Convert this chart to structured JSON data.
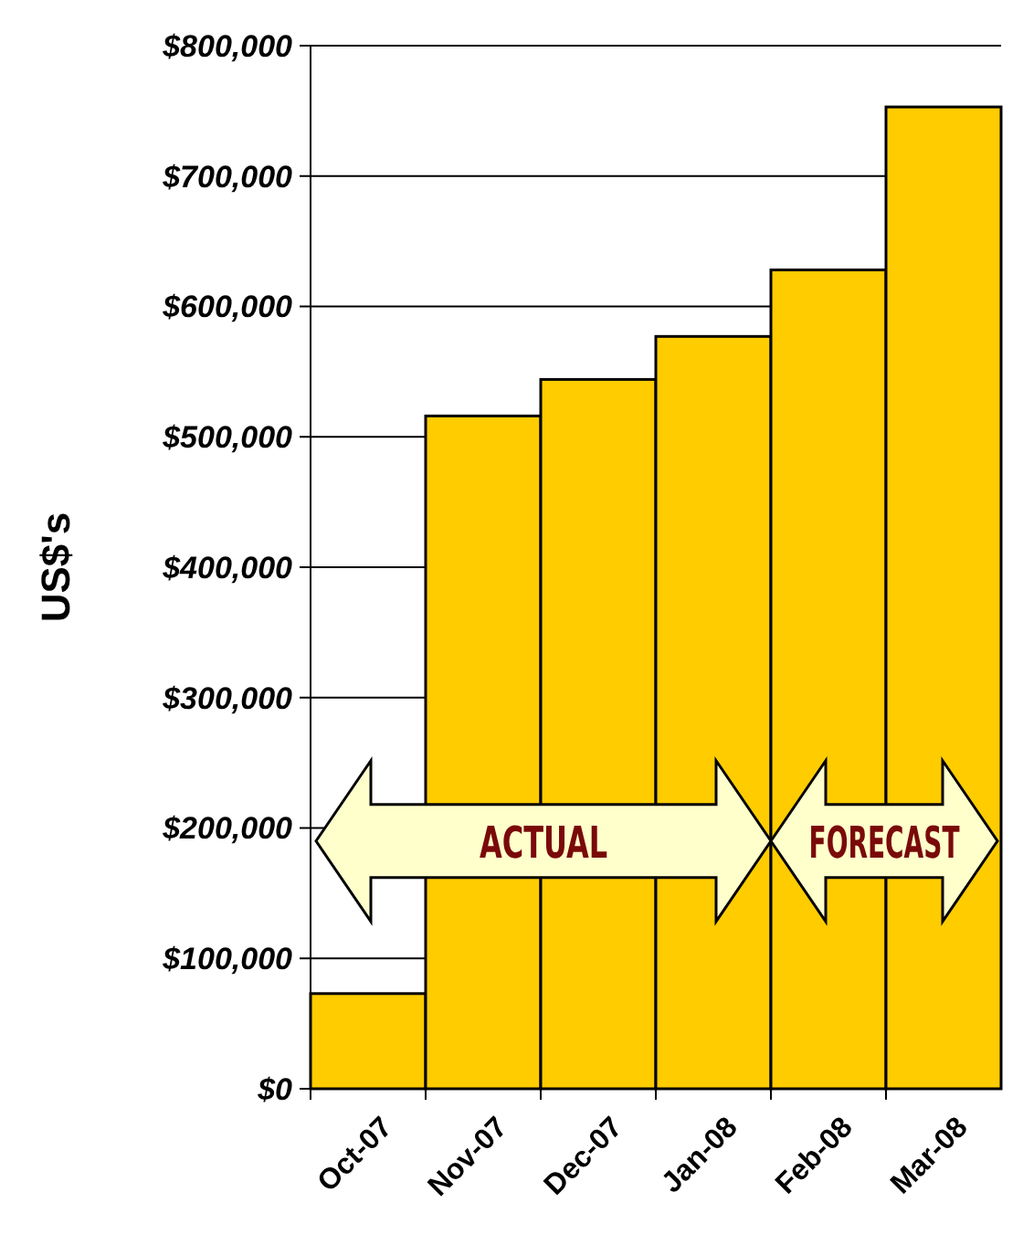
{
  "chart_data": {
    "type": "bar",
    "ylabel": "US$'s",
    "categories": [
      "Oct-07",
      "Nov-07",
      "Dec-07",
      "Jan-08",
      "Feb-08",
      "Mar-08"
    ],
    "values": [
      73000,
      516000,
      544000,
      577000,
      628000,
      753000
    ],
    "color": "#ffcc00",
    "ylim": [
      0,
      800000
    ],
    "yticks": [
      {
        "value": 0,
        "label": "$0"
      },
      {
        "value": 100000,
        "label": "$100,000"
      },
      {
        "value": 200000,
        "label": "$200,000"
      },
      {
        "value": 300000,
        "label": "$300,000"
      },
      {
        "value": 400000,
        "label": "$400,000"
      },
      {
        "value": 500000,
        "label": "$500,000"
      },
      {
        "value": 600000,
        "label": "$600,000"
      },
      {
        "value": 700000,
        "label": "$700,000"
      },
      {
        "value": 800000,
        "label": "$800,000"
      }
    ],
    "grid": "y",
    "annotations": [
      "ACTUAL",
      "FORECAST"
    ]
  }
}
